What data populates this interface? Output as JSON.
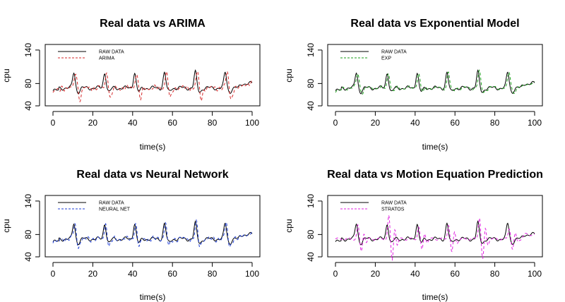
{
  "chart_data": [
    {
      "type": "line",
      "title": "Real data vs ARIMA",
      "xlabel": "time(s)",
      "ylabel": "cpu",
      "xlim": [
        0,
        100
      ],
      "ylim": [
        40,
        150
      ],
      "xticks": [
        "0",
        "20",
        "40",
        "60",
        "80",
        "100"
      ],
      "yticks": [
        "40",
        "80",
        "140"
      ],
      "legend_position": "top-left",
      "series": [
        {
          "name": "RAW DATA",
          "color": "#000000",
          "dash": "solid",
          "model": "raw"
        },
        {
          "name": "ARIMA",
          "color": "#d62728",
          "dash": "dashed",
          "model": "arima"
        }
      ]
    },
    {
      "type": "line",
      "title": "Real data vs Exponential Model",
      "xlabel": "time(s)",
      "ylabel": "cpu",
      "xlim": [
        0,
        100
      ],
      "ylim": [
        40,
        150
      ],
      "xticks": [
        "0",
        "20",
        "40",
        "60",
        "80",
        "100"
      ],
      "yticks": [
        "40",
        "80",
        "140"
      ],
      "legend_position": "top-left",
      "series": [
        {
          "name": "RAW DATA",
          "color": "#000000",
          "dash": "solid",
          "model": "raw"
        },
        {
          "name": "EXP",
          "color": "#1a9e1a",
          "dash": "dashed",
          "model": "exp"
        }
      ]
    },
    {
      "type": "line",
      "title": "Real data vs Neural Network",
      "xlabel": "time(s)",
      "ylabel": "cpu",
      "xlim": [
        0,
        100
      ],
      "ylim": [
        40,
        150
      ],
      "xticks": [
        "0",
        "20",
        "40",
        "60",
        "80",
        "100"
      ],
      "yticks": [
        "40",
        "80",
        "140"
      ],
      "legend_position": "top-left",
      "series": [
        {
          "name": "RAW DATA",
          "color": "#000000",
          "dash": "solid",
          "model": "raw"
        },
        {
          "name": "NEURAL NET",
          "color": "#1f3fd6",
          "dash": "dashed",
          "model": "nn"
        }
      ]
    },
    {
      "type": "line",
      "title": "Real data vs Motion Equation Prediction",
      "xlabel": "time(s)",
      "ylabel": "cpu",
      "xlim": [
        0,
        100
      ],
      "ylim": [
        40,
        150
      ],
      "xticks": [
        "0",
        "20",
        "40",
        "60",
        "80",
        "100"
      ],
      "yticks": [
        "40",
        "80",
        "140"
      ],
      "legend_position": "top-left",
      "series": [
        {
          "name": "RAW DATA",
          "color": "#000000",
          "dash": "solid",
          "model": "raw"
        },
        {
          "name": "STRATOS",
          "color": "#e020e0",
          "dash": "dashed",
          "model": "stratos"
        }
      ]
    }
  ]
}
